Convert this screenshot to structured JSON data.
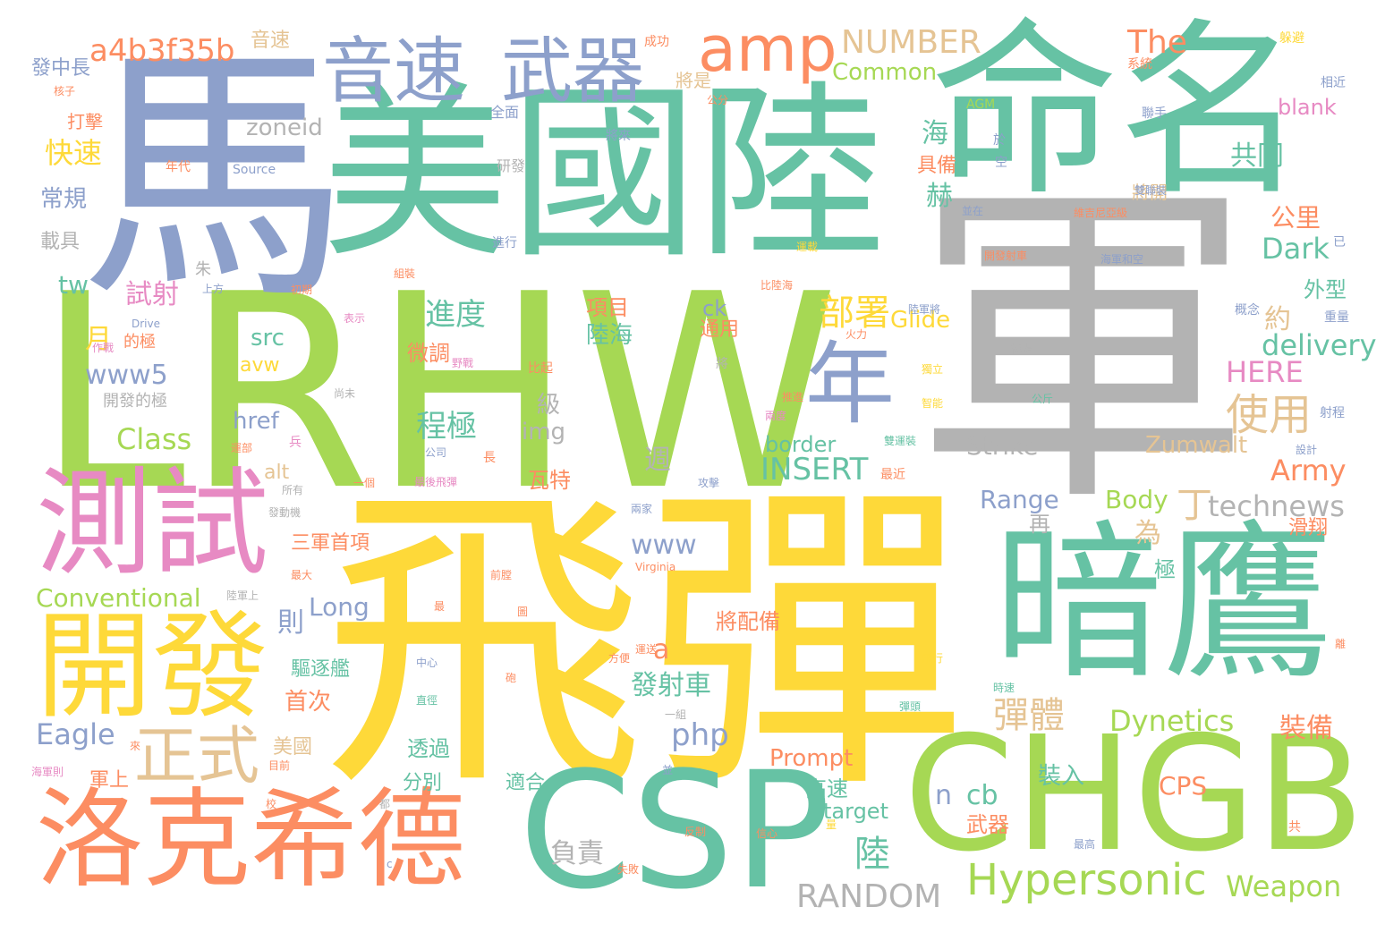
{
  "palette": {
    "yellow": "#fed939",
    "green": "#66c2a4",
    "lime": "#a6d854",
    "blue": "#8da0cb",
    "orange": "#fc8d62",
    "pink": "#e78ac3",
    "tan": "#e5c494",
    "gray": "#b3b3b3"
  },
  "words": [
    {
      "text": "飛彈",
      "color": "yellow"
    },
    {
      "text": "軍",
      "color": "gray"
    },
    {
      "text": "LRHW",
      "color": "lime"
    },
    {
      "text": "美國陸",
      "color": "green"
    },
    {
      "text": "命名",
      "color": "green"
    },
    {
      "text": "馬",
      "color": "blue"
    },
    {
      "text": "暗鷹",
      "color": "green"
    },
    {
      "text": "CHGB",
      "color": "lime"
    },
    {
      "text": "CSP",
      "color": "green"
    },
    {
      "text": "洛克希德",
      "color": "orange"
    },
    {
      "text": "測試",
      "color": "pink"
    },
    {
      "text": "開發",
      "color": "yellow"
    },
    {
      "text": "音速",
      "color": "blue"
    },
    {
      "text": "武器",
      "color": "blue"
    },
    {
      "text": "amp",
      "color": "orange"
    },
    {
      "text": "年",
      "color": "blue"
    },
    {
      "text": "正式",
      "color": "tan"
    },
    {
      "text": "Hypersonic",
      "color": "lime"
    },
    {
      "text": "a4b3f35b",
      "color": "orange"
    },
    {
      "text": "NUMBER",
      "color": "tan"
    },
    {
      "text": "The",
      "color": "orange"
    },
    {
      "text": "Common",
      "color": "lime"
    },
    {
      "text": "RANDOM",
      "color": "gray"
    },
    {
      "text": "Weapon",
      "color": "lime"
    },
    {
      "text": "technews",
      "color": "gray"
    },
    {
      "text": "Dynetics",
      "color": "lime"
    },
    {
      "text": "INSERT",
      "color": "green"
    },
    {
      "text": "delivery",
      "color": "green"
    },
    {
      "text": "Dark",
      "color": "green"
    },
    {
      "text": "HERE",
      "color": "pink"
    },
    {
      "text": "Army",
      "color": "orange"
    },
    {
      "text": "Class",
      "color": "lime"
    },
    {
      "text": "www5",
      "color": "blue"
    },
    {
      "text": "zoneid",
      "color": "gray"
    },
    {
      "text": "部署",
      "color": "yellow"
    },
    {
      "text": "使用",
      "color": "tan"
    },
    {
      "text": "彈體",
      "color": "tan"
    },
    {
      "text": "進度",
      "color": "green"
    },
    {
      "text": "程極",
      "color": "green"
    },
    {
      "text": "共同",
      "color": "green"
    },
    {
      "text": "公里",
      "color": "orange"
    },
    {
      "text": "裝備",
      "color": "orange"
    },
    {
      "text": "快速",
      "color": "yellow"
    },
    {
      "text": "常規",
      "color": "blue"
    },
    {
      "text": "載具",
      "color": "gray"
    },
    {
      "text": "試射",
      "color": "pink"
    },
    {
      "text": "月",
      "color": "yellow"
    },
    {
      "text": "tw",
      "color": "green"
    },
    {
      "text": "Eagle",
      "color": "blue"
    },
    {
      "text": "Conventional",
      "color": "lime"
    },
    {
      "text": "Long",
      "color": "blue"
    },
    {
      "text": "Range",
      "color": "blue"
    },
    {
      "text": "Strike",
      "color": "gray"
    },
    {
      "text": "Body",
      "color": "lime"
    },
    {
      "text": "Glide",
      "color": "yellow"
    },
    {
      "text": "Zumwalt",
      "color": "tan"
    },
    {
      "text": "Prompt",
      "color": "orange"
    },
    {
      "text": "CPS",
      "color": "orange"
    },
    {
      "text": "www",
      "color": "blue"
    },
    {
      "text": "php",
      "color": "blue"
    },
    {
      "text": "src",
      "color": "green"
    },
    {
      "text": "avw",
      "color": "yellow"
    },
    {
      "text": "href",
      "color": "blue"
    },
    {
      "text": "img",
      "color": "gray"
    },
    {
      "text": "alt",
      "color": "tan"
    },
    {
      "text": "border",
      "color": "green"
    },
    {
      "text": "target",
      "color": "green"
    },
    {
      "text": "blank",
      "color": "pink"
    },
    {
      "text": "ck",
      "color": "blue"
    },
    {
      "text": "cb",
      "color": "green"
    },
    {
      "text": "n",
      "color": "blue"
    },
    {
      "text": "a",
      "color": "orange"
    },
    {
      "text": "發射車",
      "color": "green"
    },
    {
      "text": "微調",
      "color": "orange"
    },
    {
      "text": "陸海",
      "color": "green"
    },
    {
      "text": "項目",
      "color": "orange"
    },
    {
      "text": "通用",
      "color": "orange"
    },
    {
      "text": "瓦特",
      "color": "orange"
    },
    {
      "text": "透過",
      "color": "green"
    },
    {
      "text": "分別",
      "color": "green"
    },
    {
      "text": "適合",
      "color": "green"
    },
    {
      "text": "高速",
      "color": "green"
    },
    {
      "text": "負責",
      "color": "gray"
    },
    {
      "text": "首次",
      "color": "orange"
    },
    {
      "text": "驅逐艦",
      "color": "green"
    },
    {
      "text": "美國",
      "color": "tan"
    },
    {
      "text": "軍上",
      "color": "orange"
    },
    {
      "text": "將配備",
      "color": "orange"
    },
    {
      "text": "三軍首項",
      "color": "orange"
    },
    {
      "text": "發中長",
      "color": "blue"
    },
    {
      "text": "打擊",
      "color": "orange"
    },
    {
      "text": "音速",
      "color": "tan"
    },
    {
      "text": "將是",
      "color": "tan"
    },
    {
      "text": "將開",
      "color": "tan"
    },
    {
      "text": "具備",
      "color": "orange"
    },
    {
      "text": "外型",
      "color": "green"
    },
    {
      "text": "約",
      "color": "tan"
    },
    {
      "text": "為",
      "color": "tan"
    },
    {
      "text": "丁",
      "color": "tan"
    },
    {
      "text": "則",
      "color": "blue"
    },
    {
      "text": "再",
      "color": "gray"
    },
    {
      "text": "週",
      "color": "gray"
    },
    {
      "text": "級",
      "color": "gray"
    },
    {
      "text": "極",
      "color": "green"
    },
    {
      "text": "海",
      "color": "green"
    },
    {
      "text": "赫",
      "color": "green"
    },
    {
      "text": "陸",
      "color": "green"
    },
    {
      "text": "滑翔",
      "color": "orange"
    },
    {
      "text": "裝入",
      "color": "green"
    },
    {
      "text": "武器",
      "color": "orange"
    },
    {
      "text": "開發的極",
      "color": "gray"
    },
    {
      "text": "成功",
      "color": "orange"
    },
    {
      "text": "研發",
      "color": "gray"
    },
    {
      "text": "全面",
      "color": "blue"
    },
    {
      "text": "公分",
      "color": "orange"
    },
    {
      "text": "將來",
      "color": "blue"
    },
    {
      "text": "年代",
      "color": "orange"
    },
    {
      "text": "Source",
      "color": "blue"
    },
    {
      "text": "AGM",
      "color": "lime"
    },
    {
      "text": "聯手",
      "color": "blue"
    },
    {
      "text": "相近",
      "color": "blue"
    },
    {
      "text": "躲避",
      "color": "yellow"
    },
    {
      "text": "系統",
      "color": "orange"
    },
    {
      "text": "雙聯裝",
      "color": "blue"
    },
    {
      "text": "並在",
      "color": "blue"
    },
    {
      "text": "維吉尼亞級",
      "color": "orange"
    },
    {
      "text": "於",
      "color": "blue"
    },
    {
      "text": "空",
      "color": "blue"
    },
    {
      "text": "已",
      "color": "blue"
    },
    {
      "text": "開發射車",
      "color": "orange"
    },
    {
      "text": "海軍和空",
      "color": "blue"
    },
    {
      "text": "運載",
      "color": "yellow"
    },
    {
      "text": "組裝",
      "color": "orange"
    },
    {
      "text": "進行",
      "color": "blue"
    },
    {
      "text": "比陸海",
      "color": "orange"
    },
    {
      "text": "陸軍將",
      "color": "blue"
    },
    {
      "text": "概念",
      "color": "blue"
    },
    {
      "text": "重量",
      "color": "blue"
    },
    {
      "text": "火力",
      "color": "orange"
    },
    {
      "text": "初期",
      "color": "orange"
    },
    {
      "text": "表示",
      "color": "pink"
    },
    {
      "text": "上方",
      "color": "blue"
    },
    {
      "text": "朱",
      "color": "gray"
    },
    {
      "text": "Drive",
      "color": "blue"
    },
    {
      "text": "作戰",
      "color": "pink"
    },
    {
      "text": "的極",
      "color": "orange"
    },
    {
      "text": "尚未",
      "color": "gray"
    },
    {
      "text": "野戰",
      "color": "pink"
    },
    {
      "text": "比起",
      "color": "orange"
    },
    {
      "text": "將",
      "color": "gray"
    },
    {
      "text": "機場",
      "color": "gray"
    },
    {
      "text": "獨立",
      "color": "yellow"
    },
    {
      "text": "智能",
      "color": "yellow"
    },
    {
      "text": "公斤",
      "color": "green"
    },
    {
      "text": "射程",
      "color": "blue"
    },
    {
      "text": "推進",
      "color": "orange"
    },
    {
      "text": "兩度",
      "color": "pink"
    },
    {
      "text": "運部",
      "color": "orange"
    },
    {
      "text": "兵",
      "color": "pink"
    },
    {
      "text": "公司",
      "color": "blue"
    },
    {
      "text": "長",
      "color": "orange"
    },
    {
      "text": "雙運裝",
      "color": "green"
    },
    {
      "text": "設計",
      "color": "blue"
    },
    {
      "text": "最近",
      "color": "orange"
    },
    {
      "text": "一個",
      "color": "orange"
    },
    {
      "text": "最後飛彈",
      "color": "pink"
    },
    {
      "text": "攻擊",
      "color": "blue"
    },
    {
      "text": "所有",
      "color": "gray"
    },
    {
      "text": "發動機",
      "color": "gray"
    },
    {
      "text": "兩家",
      "color": "blue"
    },
    {
      "text": "最大",
      "color": "orange"
    },
    {
      "text": "陸軍上",
      "color": "gray"
    },
    {
      "text": "前膛",
      "color": "orange"
    },
    {
      "text": "Virginia",
      "color": "orange"
    },
    {
      "text": "最",
      "color": "orange"
    },
    {
      "text": "圖",
      "color": "orange"
    },
    {
      "text": "運送",
      "color": "orange"
    },
    {
      "text": "飛行",
      "color": "yellow"
    },
    {
      "text": "離",
      "color": "orange"
    },
    {
      "text": "中心",
      "color": "blue"
    },
    {
      "text": "方便",
      "color": "orange"
    },
    {
      "text": "砲",
      "color": "orange"
    },
    {
      "text": "時速",
      "color": "green"
    },
    {
      "text": "一組",
      "color": "gray"
    },
    {
      "text": "彈頭",
      "color": "green"
    },
    {
      "text": "直徑",
      "color": "green"
    },
    {
      "text": "海軍則",
      "color": "pink"
    },
    {
      "text": "目前",
      "color": "orange"
    },
    {
      "text": "來",
      "color": "orange"
    },
    {
      "text": "並",
      "color": "blue"
    },
    {
      "text": "校",
      "color": "orange"
    },
    {
      "text": "都",
      "color": "gray"
    },
    {
      "text": "量",
      "color": "yellow"
    },
    {
      "text": "反制",
      "color": "orange"
    },
    {
      "text": "信心",
      "color": "orange"
    },
    {
      "text": "最高",
      "color": "blue"
    },
    {
      "text": "共",
      "color": "orange"
    },
    {
      "text": "c",
      "color": "blue"
    },
    {
      "text": "失敗",
      "color": "orange"
    },
    {
      "text": "核子",
      "color": "orange"
    }
  ]
}
